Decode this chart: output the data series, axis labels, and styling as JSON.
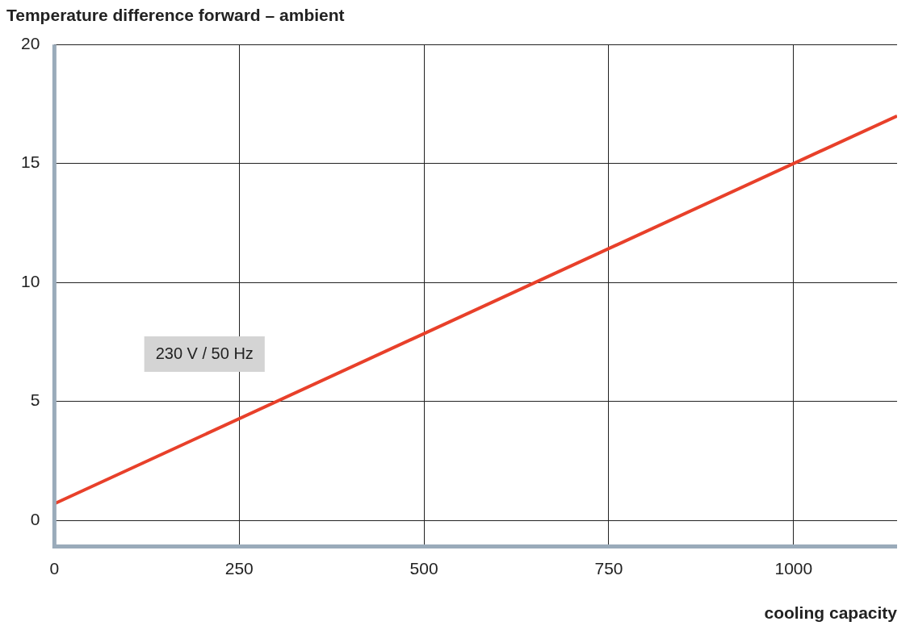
{
  "chart_data": {
    "type": "line",
    "title": "Temperature difference forward – ambient",
    "xlabel": "cooling capacity",
    "xlim": [
      0,
      1140
    ],
    "xticks": [
      0,
      250,
      500,
      750,
      1000
    ],
    "ylim": [
      -1.1,
      20
    ],
    "yticks": [
      0,
      5,
      10,
      15,
      20
    ],
    "grid": true,
    "legend": false,
    "marker": "none",
    "line_style": "solid",
    "series": [
      {
        "name": "230 V / 50 Hz",
        "color": "#e8402a",
        "x": [
          0,
          1140
        ],
        "values": [
          0.7,
          17.0
        ]
      }
    ]
  }
}
